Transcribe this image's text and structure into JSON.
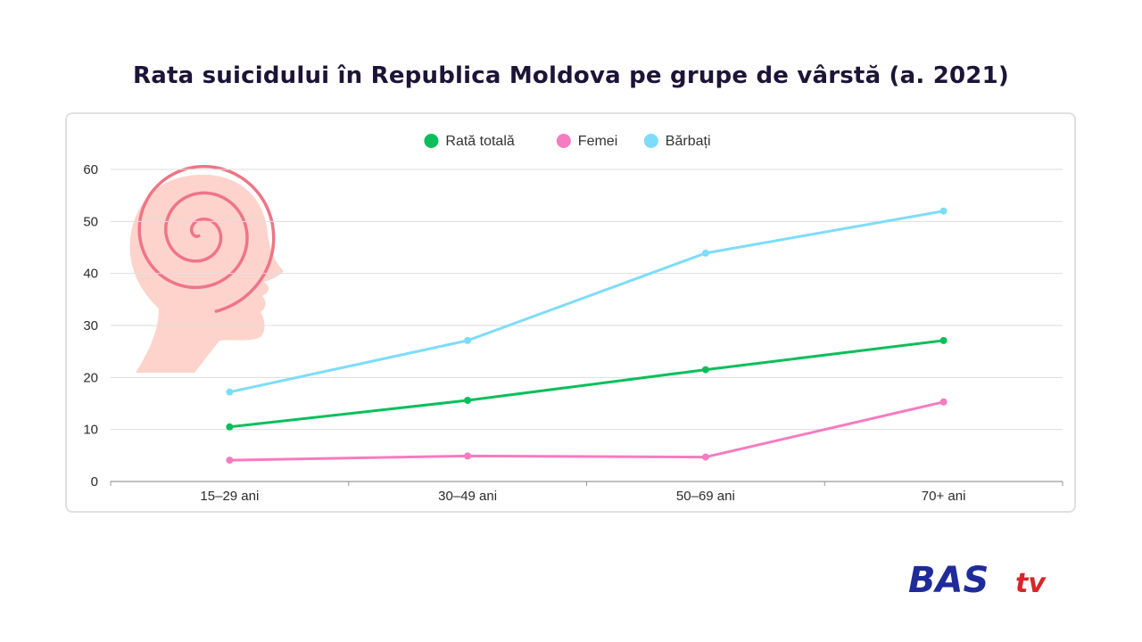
{
  "chart_data": {
    "type": "line",
    "title": "Rata suicidului în Republica Moldova pe grupe de vârstă (a. 2021)",
    "categories": [
      "15–29 ani",
      "30–49 ani",
      "50–69 ani",
      "70+ ani"
    ],
    "ylim": [
      0,
      60
    ],
    "yticks": [
      0,
      10,
      20,
      30,
      40,
      50,
      60
    ],
    "grid": true,
    "legend_position": "top",
    "series": [
      {
        "name": "Rată totală",
        "color": "#0abf5b",
        "values": [
          10.5,
          15.6,
          21.5,
          27.1
        ]
      },
      {
        "name": "Femei",
        "color": "#f77bc0",
        "values": [
          4.1,
          4.9,
          4.7,
          15.3
        ]
      },
      {
        "name": "Bărbați",
        "color": "#7ddcfa",
        "values": [
          17.2,
          27.1,
          43.9,
          52.0
        ]
      }
    ]
  },
  "decor": {
    "illustration_icon": "head-spiral-icon",
    "illustration_color": "#fed3cc",
    "spiral_color": "#ef7586"
  },
  "logo": {
    "text_main": "BAS",
    "text_sub": "tv",
    "color_main": "#1f2b9a",
    "color_sub": "#d9252a"
  }
}
